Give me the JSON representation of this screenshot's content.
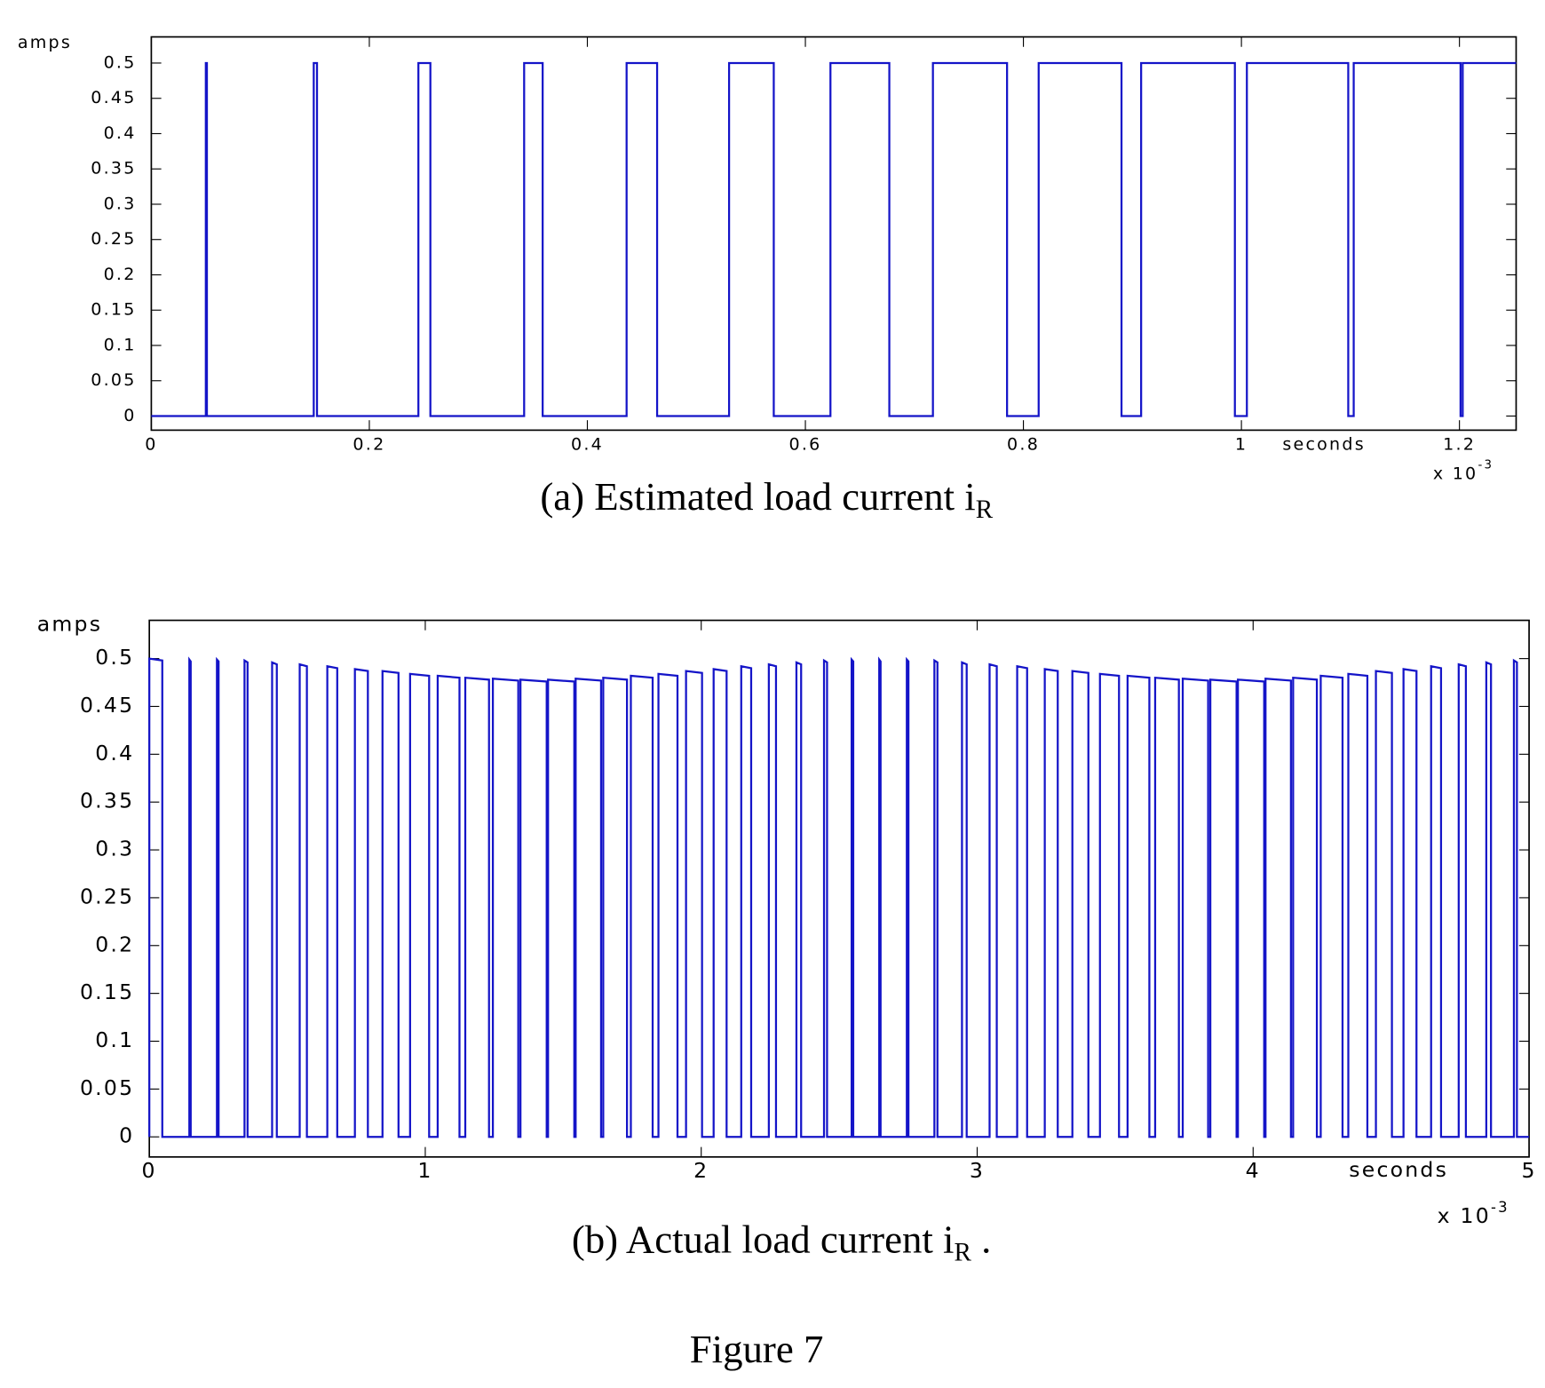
{
  "chart_data": [
    {
      "type": "line",
      "y_label": "amps",
      "x_label": "seconds",
      "x_scale": "x 10",
      "x_scale_exponent": "-3",
      "caption": "(a) Estimated load current i",
      "caption_sub": "R",
      "xlim": [
        0,
        1.252
      ],
      "ylim": [
        -0.02,
        0.537
      ],
      "xticks": [
        0,
        0.2,
        0.4,
        0.6,
        0.8,
        1,
        1.2
      ],
      "yticks": [
        0,
        0.05,
        0.1,
        0.15,
        0.2,
        0.25,
        0.3,
        0.35,
        0.4,
        0.45,
        0.5
      ],
      "grid": false,
      "color": "#1414c8",
      "x": [
        0,
        0.05,
        0.05,
        0.051,
        0.051,
        0.149,
        0.149,
        0.152,
        0.152,
        0.245,
        0.245,
        0.256,
        0.256,
        0.342,
        0.342,
        0.359,
        0.359,
        0.436,
        0.436,
        0.464,
        0.464,
        0.53,
        0.53,
        0.571,
        0.571,
        0.623,
        0.623,
        0.677,
        0.677,
        0.717,
        0.717,
        0.785,
        0.785,
        0.814,
        0.814,
        0.89,
        0.89,
        0.908,
        0.908,
        0.994,
        0.994,
        1.005,
        1.005,
        1.098,
        1.098,
        1.103,
        1.103,
        1.201,
        1.201,
        1.203,
        1.203,
        1.252
      ],
      "values": [
        0,
        0,
        0.5,
        0.5,
        0,
        0,
        0.5,
        0.5,
        0,
        0,
        0.5,
        0.5,
        0,
        0,
        0.5,
        0.5,
        0,
        0,
        0.5,
        0.5,
        0,
        0,
        0.5,
        0.5,
        0,
        0,
        0.5,
        0.5,
        0,
        0,
        0.5,
        0.5,
        0,
        0,
        0.5,
        0.5,
        0,
        0,
        0.5,
        0.5,
        0,
        0,
        0.5,
        0.5,
        0,
        0,
        0.5,
        0.5,
        0,
        0,
        0.5,
        0.5
      ]
    },
    {
      "type": "line",
      "y_label": "amps",
      "x_label": "seconds",
      "x_scale": "x 10",
      "x_scale_exponent": "-3",
      "caption": "(b) Actual load current i",
      "caption_sub": "R",
      "caption_tail": " .",
      "xlim": [
        0,
        5
      ],
      "ylim": [
        -0.021,
        0.54
      ],
      "xticks": [
        0,
        1,
        2,
        3,
        4,
        5
      ],
      "yticks": [
        0,
        0.05,
        0.1,
        0.15,
        0.2,
        0.25,
        0.3,
        0.35,
        0.4,
        0.45,
        0.5
      ],
      "grid": false,
      "color": "#1414c8",
      "x": [
        0,
        0,
        0.047,
        0.047,
        0.145,
        0.145,
        0.15,
        0.15,
        0.245,
        0.245,
        0.251,
        0.251,
        0.345,
        0.345,
        0.356,
        0.356,
        0.445,
        0.445,
        0.462,
        0.462,
        0.545,
        0.545,
        0.571,
        0.571,
        0.645,
        0.645,
        0.681,
        0.681,
        0.745,
        0.745,
        0.792,
        0.792,
        0.845,
        0.845,
        0.903,
        0.903,
        0.945,
        0.945,
        1.014,
        1.014,
        1.045,
        1.045,
        1.124,
        1.124,
        1.145,
        1.145,
        1.231,
        1.231,
        1.245,
        1.245,
        1.337,
        1.337,
        1.345,
        1.345,
        1.44,
        1.44,
        1.445,
        1.445,
        1.54,
        1.54,
        1.545,
        1.545,
        1.637,
        1.637,
        1.645,
        1.645,
        1.731,
        1.731,
        1.745,
        1.745,
        1.824,
        1.824,
        1.845,
        1.845,
        1.914,
        1.914,
        1.945,
        1.945,
        2.003,
        2.003,
        2.045,
        2.045,
        2.092,
        2.092,
        2.145,
        2.145,
        2.181,
        2.181,
        2.245,
        2.245,
        2.271,
        2.271,
        2.345,
        2.345,
        2.362,
        2.362,
        2.445,
        2.445,
        2.456,
        2.456,
        2.545,
        2.545,
        2.551,
        2.551,
        2.645,
        2.645,
        2.65,
        2.65,
        2.745,
        2.745,
        2.751,
        2.751,
        2.845,
        2.845,
        2.856,
        2.856,
        2.945,
        2.945,
        2.962,
        2.962,
        3.045,
        3.045,
        3.071,
        3.071,
        3.145,
        3.145,
        3.181,
        3.181,
        3.245,
        3.245,
        3.292,
        3.292,
        3.345,
        3.345,
        3.403,
        3.403,
        3.445,
        3.445,
        3.514,
        3.514,
        3.545,
        3.545,
        3.624,
        3.624,
        3.645,
        3.645,
        3.731,
        3.731,
        3.745,
        3.745,
        3.837,
        3.837,
        3.845,
        3.845,
        3.94,
        3.94,
        3.945,
        3.945,
        4.04,
        4.04,
        4.045,
        4.045,
        4.137,
        4.137,
        4.145,
        4.145,
        4.231,
        4.231,
        4.245,
        4.245,
        4.324,
        4.324,
        4.345,
        4.345,
        4.414,
        4.414,
        4.445,
        4.445,
        4.503,
        4.503,
        4.545,
        4.545,
        4.592,
        4.592,
        4.645,
        4.645,
        4.681,
        4.681,
        4.745,
        4.745,
        4.771,
        4.771,
        4.845,
        4.845,
        4.862,
        4.862,
        4.945,
        4.945,
        4.956,
        4.956,
        5
      ],
      "values": [
        0,
        0.5,
        0.498,
        0,
        0,
        0.499,
        0.497,
        0,
        0,
        0.499,
        0.497,
        0,
        0,
        0.498,
        0.496,
        0,
        0,
        0.496,
        0.494,
        0,
        0,
        0.494,
        0.492,
        0,
        0,
        0.492,
        0.49,
        0,
        0,
        0.489,
        0.487,
        0,
        0,
        0.487,
        0.485,
        0,
        0,
        0.484,
        0.482,
        0,
        0,
        0.482,
        0.48,
        0,
        0,
        0.48,
        0.478,
        0,
        0,
        0.479,
        0.477,
        0,
        0,
        0.478,
        0.476,
        0,
        0,
        0.478,
        0.476,
        0,
        0,
        0.479,
        0.477,
        0,
        0,
        0.48,
        0.478,
        0,
        0,
        0.482,
        0.48,
        0,
        0,
        0.484,
        0.482,
        0,
        0,
        0.487,
        0.485,
        0,
        0,
        0.489,
        0.487,
        0,
        0,
        0.492,
        0.49,
        0,
        0,
        0.494,
        0.492,
        0,
        0,
        0.496,
        0.494,
        0,
        0,
        0.498,
        0.496,
        0,
        0,
        0.499,
        0.497,
        0,
        0,
        0.499,
        0.497,
        0,
        0,
        0.499,
        0.497,
        0,
        0,
        0.498,
        0.496,
        0,
        0,
        0.496,
        0.494,
        0,
        0,
        0.494,
        0.492,
        0,
        0,
        0.492,
        0.49,
        0,
        0,
        0.489,
        0.487,
        0,
        0,
        0.487,
        0.485,
        0,
        0,
        0.484,
        0.482,
        0,
        0,
        0.482,
        0.48,
        0,
        0,
        0.48,
        0.478,
        0,
        0,
        0.479,
        0.477,
        0,
        0,
        0.478,
        0.476,
        0,
        0,
        0.478,
        0.476,
        0,
        0,
        0.479,
        0.477,
        0,
        0,
        0.48,
        0.478,
        0,
        0,
        0.482,
        0.48,
        0,
        0,
        0.484,
        0.482,
        0,
        0,
        0.487,
        0.485,
        0,
        0,
        0.489,
        0.487,
        0,
        0,
        0.492,
        0.49,
        0,
        0,
        0.494,
        0.492,
        0,
        0,
        0.496,
        0.494,
        0,
        0,
        0.498,
        0.496,
        0,
        0
      ]
    }
  ],
  "figure_label": "Figure 7"
}
